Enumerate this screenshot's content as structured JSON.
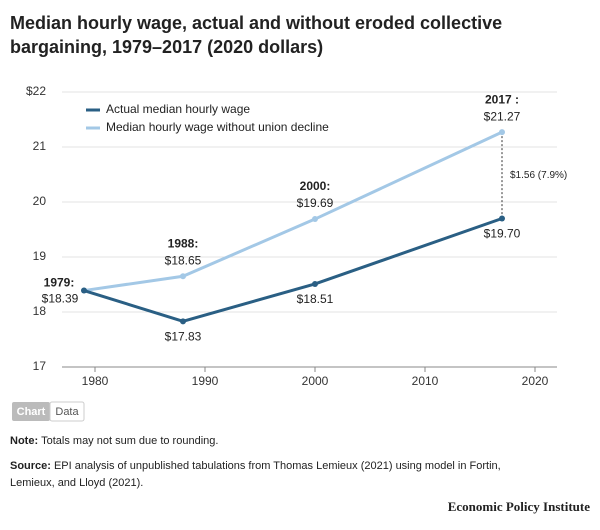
{
  "chart_data": {
    "type": "line",
    "title_line1": "Median hourly wage, actual and without eroded collective",
    "title_line2": "bargaining, 1979–2017 (2020 dollars)",
    "x": [
      1979,
      1988,
      2000,
      2017
    ],
    "series": [
      {
        "name": "Actual median hourly wage",
        "color": "#2a5f84",
        "values": [
          18.39,
          17.83,
          18.51,
          19.7
        ],
        "value_labels": [
          null,
          "$17.83",
          "$18.51",
          "$19.70"
        ]
      },
      {
        "name": "Median hourly wage without union decline",
        "color": "#a3c8e6",
        "values": [
          18.39,
          18.65,
          19.69,
          21.27
        ],
        "value_labels": [
          "$18.39",
          "$18.65",
          "$19.69",
          "$21.27"
        ],
        "point_titles": [
          "1979:",
          "1988:",
          "2000:",
          "2017 :"
        ]
      }
    ],
    "gap_label": "$1.56 (7.9%)",
    "xlim": [
      1977,
      2022
    ],
    "xticks": [
      1980,
      1990,
      2000,
      2010,
      2020
    ],
    "ylim": [
      17,
      22
    ],
    "yticks": [
      17,
      18,
      19,
      20,
      21,
      {
        "value": 22,
        "label": "$22"
      }
    ],
    "grid": true,
    "legend": "top-left"
  },
  "tabs": [
    "Chart",
    "Data"
  ],
  "footer": {
    "note_label": "Note:",
    "note_text": "Totals may not sum due to rounding.",
    "source_label": "Source:",
    "source_line1": "EPI analysis of unpublished tabulations from Thomas Lemieux (2021) using model in Fortin,",
    "source_line2": "Lemieux, and Lloyd (2021).",
    "publisher": "Economic Policy Institute"
  }
}
